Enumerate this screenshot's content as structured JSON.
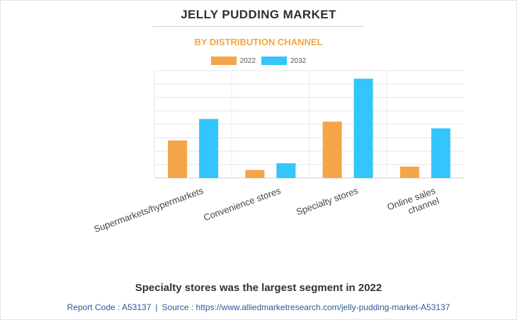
{
  "chart_data": {
    "type": "bar",
    "title": "JELLY PUDDING MARKET",
    "subtitle": "BY DISTRIBUTION CHANNEL",
    "categories": [
      "Supermarkets/hypermarkets",
      "Convenience stores",
      "Specialty stores",
      "Online sales channel"
    ],
    "category_lines": [
      [
        "Supermarkets/hypermarkets"
      ],
      [
        "Convenience stores"
      ],
      [
        "Specialty stores"
      ],
      [
        "Online sales",
        "channel"
      ]
    ],
    "series": [
      {
        "name": "2022",
        "color": "#f4a548",
        "values": [
          2.8,
          0.6,
          4.2,
          0.85
        ]
      },
      {
        "name": "2032",
        "color": "#33c5fb",
        "values": [
          4.4,
          1.1,
          7.4,
          3.7
        ]
      }
    ],
    "ylim": [
      0,
      8
    ],
    "grid": true,
    "legend": "top-center",
    "xlabel": "",
    "ylabel": ""
  },
  "footer": {
    "heading": "Specialty stores was the largest segment in 2022",
    "report_code": "Report Code : A53137",
    "separator": "|",
    "source": "Source : https://www.alliedmarketresearch.com/jelly-pudding-market-A53137"
  }
}
